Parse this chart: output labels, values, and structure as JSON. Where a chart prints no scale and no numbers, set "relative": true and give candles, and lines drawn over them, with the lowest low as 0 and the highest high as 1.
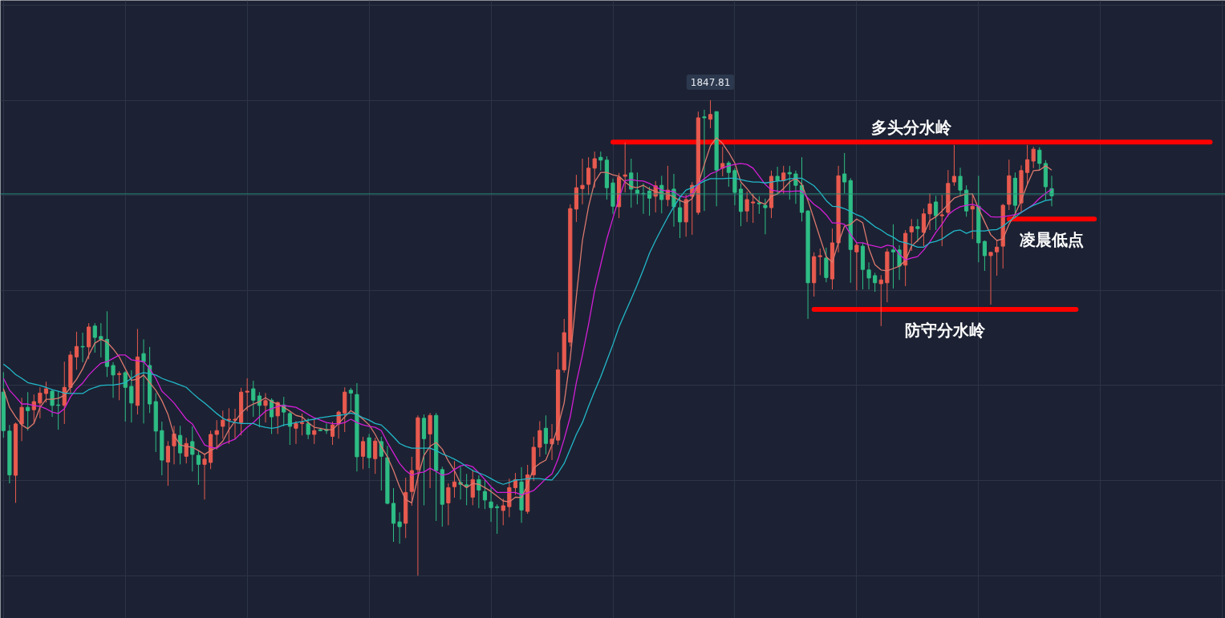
{
  "chart_data": {
    "type": "candlestick",
    "relative": true,
    "grid": true,
    "categories": [
      null,
      null,
      null,
      null,
      null,
      null,
      null,
      null,
      null,
      null,
      null,
      null,
      null,
      null,
      null,
      null,
      null,
      null,
      null,
      null,
      null,
      null,
      null,
      null,
      null,
      null,
      null,
      null,
      null,
      null,
      null,
      null,
      null,
      null,
      null,
      null,
      null,
      null,
      null,
      null,
      null,
      null,
      null,
      null,
      null,
      null,
      null,
      null,
      null,
      null,
      null,
      null,
      null,
      null,
      null,
      null,
      null,
      null,
      null,
      null,
      null,
      null,
      null,
      null,
      null,
      null,
      null,
      null,
      null,
      null,
      null,
      null,
      null,
      null,
      null,
      null,
      null,
      null,
      null,
      null,
      null,
      null,
      null,
      null,
      null,
      null,
      null,
      null,
      null,
      null,
      null,
      null,
      null,
      null,
      null,
      null,
      null,
      null,
      null,
      null,
      null,
      null,
      null,
      null,
      null,
      null,
      null,
      null,
      null,
      null,
      null,
      null,
      null,
      null,
      null,
      null,
      null,
      null,
      null,
      null,
      null,
      null,
      null,
      null,
      null,
      null,
      null,
      null,
      null,
      null,
      null,
      null,
      null,
      null,
      null,
      null,
      null,
      null,
      null,
      null,
      null,
      null,
      null,
      null,
      null,
      null,
      null,
      null,
      null,
      null,
      null,
      null,
      null,
      null,
      null,
      null,
      null,
      null,
      null,
      null,
      null,
      null,
      null,
      null,
      null,
      null,
      null,
      null,
      null,
      null,
      null,
      null,
      null,
      null,
      null,
      null,
      null,
      null,
      null,
      null,
      null,
      null,
      null,
      null,
      null,
      null,
      null,
      null,
      null,
      null,
      null,
      null,
      null,
      null,
      null,
      null,
      null,
      null,
      null,
      null,
      null
    ],
    "ohlc": [
      [
        0.386,
        0.428,
        0.29,
        0.305
      ],
      [
        0.304,
        0.317,
        0.194,
        0.212
      ],
      [
        0.211,
        0.322,
        0.153,
        0.319
      ],
      [
        0.319,
        0.374,
        0.283,
        0.354
      ],
      [
        0.354,
        0.386,
        0.305,
        0.347
      ],
      [
        0.349,
        0.381,
        0.32,
        0.366
      ],
      [
        0.363,
        0.396,
        0.331,
        0.384
      ],
      [
        0.383,
        0.408,
        0.364,
        0.393
      ],
      [
        0.388,
        0.391,
        0.334,
        0.358
      ],
      [
        0.359,
        0.388,
        0.307,
        0.358
      ],
      [
        0.358,
        0.45,
        0.319,
        0.396
      ],
      [
        0.396,
        0.472,
        0.384,
        0.464
      ],
      [
        0.46,
        0.513,
        0.433,
        0.482
      ],
      [
        0.482,
        0.511,
        0.449,
        0.481
      ],
      [
        0.481,
        0.531,
        0.455,
        0.523
      ],
      [
        0.525,
        0.531,
        0.469,
        0.501
      ],
      [
        0.503,
        0.531,
        0.459,
        0.497
      ],
      [
        0.497,
        0.556,
        0.418,
        0.44
      ],
      [
        0.442,
        0.449,
        0.374,
        0.422
      ],
      [
        0.423,
        0.43,
        0.369,
        0.425
      ],
      [
        0.427,
        0.43,
        0.324,
        0.396
      ],
      [
        0.398,
        0.432,
        0.322,
        0.363
      ],
      [
        0.358,
        0.519,
        0.339,
        0.46
      ],
      [
        0.467,
        0.497,
        0.32,
        0.45
      ],
      [
        0.442,
        0.481,
        0.342,
        0.361
      ],
      [
        0.366,
        0.384,
        0.26,
        0.304
      ],
      [
        0.305,
        0.324,
        0.211,
        0.243
      ],
      [
        0.239,
        0.283,
        0.189,
        0.272
      ],
      [
        0.273,
        0.315,
        0.234,
        0.298
      ],
      [
        0.295,
        0.315,
        0.234,
        0.258
      ],
      [
        0.251,
        0.29,
        0.236,
        0.278
      ],
      [
        0.282,
        0.314,
        0.219,
        0.255
      ],
      [
        0.253,
        0.263,
        0.191,
        0.234
      ],
      [
        0.234,
        0.256,
        0.16,
        0.245
      ],
      [
        0.238,
        0.305,
        0.224,
        0.297
      ],
      [
        0.297,
        0.327,
        0.265,
        0.305
      ],
      [
        0.314,
        0.347,
        0.288,
        0.327
      ],
      [
        0.327,
        0.352,
        0.277,
        0.329
      ],
      [
        0.327,
        0.351,
        0.288,
        0.329
      ],
      [
        0.322,
        0.395,
        0.295,
        0.386
      ],
      [
        0.386,
        0.415,
        0.346,
        0.388
      ],
      [
        0.393,
        0.41,
        0.334,
        0.369
      ],
      [
        0.378,
        0.386,
        0.312,
        0.358
      ],
      [
        0.358,
        0.384,
        0.322,
        0.368
      ],
      [
        0.369,
        0.373,
        0.298,
        0.334
      ],
      [
        0.336,
        0.366,
        0.298,
        0.364
      ],
      [
        0.359,
        0.376,
        0.314,
        0.344
      ],
      [
        0.341,
        0.346,
        0.275,
        0.314
      ],
      [
        0.31,
        0.325,
        0.277,
        0.32
      ],
      [
        0.32,
        0.341,
        0.295,
        0.322
      ],
      [
        0.32,
        0.331,
        0.287,
        0.297
      ],
      [
        0.297,
        0.329,
        0.277,
        0.305
      ],
      [
        0.307,
        0.309,
        0.304,
        0.305
      ],
      [
        0.307,
        0.32,
        0.298,
        0.305
      ],
      [
        0.293,
        0.324,
        0.275,
        0.317
      ],
      [
        0.319,
        0.347,
        0.288,
        0.344
      ],
      [
        0.342,
        0.396,
        0.302,
        0.386
      ],
      [
        0.39,
        0.395,
        0.347,
        0.384
      ],
      [
        0.381,
        0.405,
        0.219,
        0.25
      ],
      [
        0.251,
        0.292,
        0.224,
        0.282
      ],
      [
        0.29,
        0.298,
        0.226,
        0.248
      ],
      [
        0.246,
        0.29,
        0.214,
        0.283
      ],
      [
        0.282,
        0.292,
        0.179,
        0.251
      ],
      [
        0.248,
        0.273,
        0.15,
        0.152
      ],
      [
        0.152,
        0.184,
        0.071,
        0.11
      ],
      [
        0.113,
        0.133,
        0.067,
        0.103
      ],
      [
        0.11,
        0.206,
        0.079,
        0.175
      ],
      [
        0.177,
        0.25,
        0.147,
        0.221
      ],
      [
        0.223,
        0.337,
        0,
        0.332
      ],
      [
        0.331,
        0.339,
        0.148,
        0.288
      ],
      [
        0.298,
        0.342,
        0.184,
        0.337
      ],
      [
        0.337,
        0.342,
        0.115,
        0.221
      ],
      [
        0.223,
        0.229,
        0.103,
        0.15
      ],
      [
        0.153,
        0.194,
        0.106,
        0.185
      ],
      [
        0.187,
        0.241,
        0.164,
        0.197
      ],
      [
        0.196,
        0.229,
        0.16,
        0.192
      ],
      [
        0.191,
        0.214,
        0.148,
        0.187
      ],
      [
        0.165,
        0.223,
        0.148,
        0.202
      ],
      [
        0.202,
        0.211,
        0.142,
        0.18
      ],
      [
        0.177,
        0.201,
        0.14,
        0.159
      ],
      [
        0.155,
        0.185,
        0.113,
        0.143
      ],
      [
        0.145,
        0.15,
        0.088,
        0.143
      ],
      [
        0.137,
        0.162,
        0.106,
        0.147
      ],
      [
        0.145,
        0.204,
        0.123,
        0.185
      ],
      [
        0.185,
        0.216,
        0.17,
        0.202
      ],
      [
        0.197,
        0.228,
        0.111,
        0.138
      ],
      [
        0.135,
        0.233,
        0.13,
        0.212
      ],
      [
        0.212,
        0.292,
        0.199,
        0.27
      ],
      [
        0.27,
        0.325,
        0.25,
        0.305
      ],
      [
        0.31,
        0.337,
        0.255,
        0.278
      ],
      [
        0.277,
        0.319,
        0.243,
        0.287
      ],
      [
        0.285,
        0.47,
        0.275,
        0.433
      ],
      [
        0.433,
        0.54,
        0.427,
        0.511
      ],
      [
        0.491,
        0.781,
        0.482,
        0.772
      ],
      [
        0.771,
        0.843,
        0.744,
        0.816
      ],
      [
        0.814,
        0.877,
        0.781,
        0.821
      ],
      [
        0.823,
        0.88,
        0.801,
        0.857
      ],
      [
        0.857,
        0.892,
        0.816,
        0.877
      ],
      [
        0.88,
        0.892,
        0.852,
        0.874
      ],
      [
        0.874,
        0.882,
        0.791,
        0.816
      ],
      [
        0.826,
        0.835,
        0.761,
        0.777
      ],
      [
        0.776,
        0.847,
        0.752,
        0.838
      ],
      [
        0.84,
        0.911,
        0.806,
        0.843
      ],
      [
        0.847,
        0.877,
        0.774,
        0.813
      ],
      [
        0.811,
        0.848,
        0.781,
        0.804
      ],
      [
        0.804,
        0.825,
        0.761,
        0.803
      ],
      [
        0.809,
        0.818,
        0.757,
        0.794
      ],
      [
        0.798,
        0.83,
        0.764,
        0.82
      ],
      [
        0.821,
        0.841,
        0.762,
        0.791
      ],
      [
        0.791,
        0.862,
        0.777,
        0.811
      ],
      [
        0.813,
        0.845,
        0.734,
        0.776
      ],
      [
        0.774,
        0.794,
        0.71,
        0.744
      ],
      [
        0.744,
        0.801,
        0.713,
        0.791
      ],
      [
        0.798,
        0.828,
        0.717,
        0.821
      ],
      [
        0.764,
        0.976,
        0.759,
        0.963
      ],
      [
        0.965,
        0.98,
        0.767,
        0.963
      ],
      [
        0.96,
        1,
        0.941,
        0.97
      ],
      [
        0.976,
        0.976,
        0.777,
        0.853
      ],
      [
        0.857,
        0.902,
        0.84,
        0.867
      ],
      [
        0.868,
        0.872,
        0.818,
        0.848
      ],
      [
        0.852,
        0.857,
        0.779,
        0.806
      ],
      [
        0.813,
        0.825,
        0.735,
        0.766
      ],
      [
        0.767,
        0.808,
        0.744,
        0.791
      ],
      [
        0.784,
        0.804,
        0.742,
        0.786
      ],
      [
        0.784,
        0.798,
        0.761,
        0.782
      ],
      [
        0.779,
        0.793,
        0.718,
        0.774
      ],
      [
        0.774,
        0.852,
        0.752,
        0.84
      ],
      [
        0.84,
        0.86,
        0.801,
        0.831
      ],
      [
        0.831,
        0.862,
        0.803,
        0.847
      ],
      [
        0.848,
        0.862,
        0.791,
        0.845
      ],
      [
        0.845,
        0.852,
        0.782,
        0.821
      ],
      [
        0.821,
        0.88,
        0.745,
        0.764
      ],
      [
        0.767,
        0.769,
        0.54,
        0.616
      ],
      [
        0.616,
        0.68,
        0.587,
        0.671
      ],
      [
        0.671,
        0.688,
        0.632,
        0.673
      ],
      [
        0.668,
        0.69,
        0.617,
        0.627
      ],
      [
        0.624,
        0.73,
        0.602,
        0.7
      ],
      [
        0.7,
        0.862,
        0.68,
        0.841
      ],
      [
        0.845,
        0.889,
        0.804,
        0.828
      ],
      [
        0.831,
        0.836,
        0.616,
        0.686
      ],
      [
        0.681,
        0.7,
        0.6,
        0.695
      ],
      [
        0.693,
        0.7,
        0.602,
        0.644
      ],
      [
        0.643,
        0.659,
        0.602,
        0.626
      ],
      [
        0.631,
        0.637,
        0.597,
        0.616
      ],
      [
        0.614,
        0.632,
        0.525,
        0.622
      ],
      [
        0.616,
        0.688,
        0.575,
        0.681
      ],
      [
        0.685,
        0.739,
        0.604,
        0.681
      ],
      [
        0.685,
        0.695,
        0.622,
        0.651
      ],
      [
        0.653,
        0.727,
        0.609,
        0.72
      ],
      [
        0.723,
        0.75,
        0.683,
        0.734
      ],
      [
        0.734,
        0.75,
        0.702,
        0.73
      ],
      [
        0.722,
        0.772,
        0.693,
        0.761
      ],
      [
        0.761,
        0.804,
        0.727,
        0.782
      ],
      [
        0.786,
        0.799,
        0.727,
        0.757
      ],
      [
        0.757,
        0.801,
        0.693,
        0.759
      ],
      [
        0.764,
        0.853,
        0.755,
        0.825
      ],
      [
        0.828,
        0.906,
        0.82,
        0.84
      ],
      [
        0.84,
        0.858,
        0.798,
        0.811
      ],
      [
        0.811,
        0.821,
        0.755,
        0.767
      ],
      [
        0.771,
        0.804,
        0.708,
        0.777
      ],
      [
        0.777,
        0.841,
        0.659,
        0.7
      ],
      [
        0.703,
        0.705,
        0.641,
        0.673
      ],
      [
        0.673,
        0.681,
        0.57,
        0.68
      ],
      [
        0.681,
        0.705,
        0.631,
        0.691
      ],
      [
        0.693,
        0.782,
        0.646,
        0.779
      ],
      [
        0.781,
        0.875,
        0.769,
        0.841
      ],
      [
        0.836,
        0.848,
        0.755,
        0.779
      ],
      [
        0.784,
        0.863,
        0.764,
        0.852
      ],
      [
        0.848,
        0.906,
        0.823,
        0.875
      ],
      [
        0.872,
        0.902,
        0.857,
        0.897
      ],
      [
        0.895,
        0.901,
        0.853,
        0.867
      ],
      [
        0.867,
        0.874,
        0.789,
        0.818
      ],
      [
        0.814,
        0.841,
        0.777,
        0.799
      ],
      null,
      null,
      null,
      null,
      null,
      null,
      null,
      null,
      null,
      null,
      null,
      null,
      null,
      null,
      null,
      null,
      null,
      null,
      null,
      null,
      null,
      null,
      null,
      null,
      null,
      null,
      null,
      null
    ],
    "colors": [
      "#2ebd85",
      "#2ebd85",
      "#e85a4f",
      "#e85a4f",
      "#2ebd85",
      "#e85a4f",
      "#e85a4f",
      "#e85a4f",
      "#2ebd85",
      "#2ebd85",
      "#e85a4f",
      "#e85a4f",
      "#e85a4f",
      "#2ebd85",
      "#e85a4f",
      "#2ebd85",
      "#2ebd85",
      "#2ebd85",
      "#2ebd85",
      "#e85a4f",
      "#2ebd85",
      "#2ebd85",
      "#e85a4f",
      "#2ebd85",
      "#2ebd85",
      "#2ebd85",
      "#2ebd85",
      "#e85a4f",
      "#e85a4f",
      "#2ebd85",
      "#e85a4f",
      "#2ebd85",
      "#2ebd85",
      "#e85a4f",
      "#e85a4f",
      "#e85a4f",
      "#e85a4f",
      "#e85a4f",
      "#e85a4f",
      "#e85a4f",
      "#e85a4f",
      "#2ebd85",
      "#2ebd85",
      "#e85a4f",
      "#2ebd85",
      "#e85a4f",
      "#2ebd85",
      "#2ebd85",
      "#e85a4f",
      "#e85a4f",
      "#2ebd85",
      "#e85a4f",
      "#2ebd85",
      "#2ebd85",
      "#e85a4f",
      "#e85a4f",
      "#e85a4f",
      "#2ebd85",
      "#2ebd85",
      "#e85a4f",
      "#2ebd85",
      "#e85a4f",
      "#2ebd85",
      "#2ebd85",
      "#2ebd85",
      "#2ebd85",
      "#e85a4f",
      "#e85a4f",
      "#e85a4f",
      "#2ebd85",
      "#e85a4f",
      "#2ebd85",
      "#2ebd85",
      "#e85a4f",
      "#e85a4f",
      "#2ebd85",
      "#2ebd85",
      "#e85a4f",
      "#2ebd85",
      "#2ebd85",
      "#2ebd85",
      "#2ebd85",
      "#e85a4f",
      "#e85a4f",
      "#e85a4f",
      "#2ebd85",
      "#e85a4f",
      "#e85a4f",
      "#e85a4f",
      "#2ebd85",
      "#e85a4f",
      "#e85a4f",
      "#e85a4f",
      "#e85a4f",
      "#e85a4f",
      "#e85a4f",
      "#e85a4f",
      "#e85a4f",
      "#2ebd85",
      "#2ebd85",
      "#2ebd85",
      "#e85a4f",
      "#e85a4f",
      "#2ebd85",
      "#2ebd85",
      "#2ebd85",
      "#2ebd85",
      "#e85a4f",
      "#2ebd85",
      "#e85a4f",
      "#2ebd85",
      "#2ebd85",
      "#e85a4f",
      "#e85a4f",
      "#e85a4f",
      "#2ebd85",
      "#e85a4f",
      "#2ebd85",
      "#e85a4f",
      "#2ebd85",
      "#2ebd85",
      "#2ebd85",
      "#e85a4f",
      "#e85a4f",
      "#2ebd85",
      "#2ebd85",
      "#e85a4f",
      "#2ebd85",
      "#e85a4f",
      "#2ebd85",
      "#2ebd85",
      "#2ebd85",
      "#2ebd85",
      "#e85a4f",
      "#e85a4f",
      "#2ebd85",
      "#e85a4f",
      "#e85a4f",
      "#2ebd85",
      "#2ebd85",
      "#e85a4f",
      "#2ebd85",
      "#2ebd85",
      "#2ebd85",
      "#e85a4f",
      "#e85a4f",
      "#2ebd85",
      "#2ebd85",
      "#e85a4f",
      "#e85a4f",
      "#2ebd85",
      "#e85a4f",
      "#e85a4f",
      "#2ebd85",
      "#e85a4f",
      "#e85a4f",
      "#e85a4f",
      "#2ebd85",
      "#2ebd85",
      "#e85a4f",
      "#2ebd85",
      "#2ebd85",
      "#e85a4f",
      "#e85a4f",
      "#e85a4f",
      "#e85a4f",
      "#2ebd85",
      "#e85a4f",
      "#e85a4f",
      "#e85a4f",
      "#2ebd85",
      "#2ebd85",
      "#2ebd85",
      null,
      null,
      null,
      null,
      null,
      null,
      null,
      null,
      null,
      null,
      null,
      null,
      null,
      null,
      null,
      null,
      null,
      null,
      null,
      null,
      null,
      null,
      null,
      null,
      null,
      null,
      null,
      null
    ],
    "series": [
      {
        "type": "line",
        "color": "#dc786e",
        "values": [
          0.393,
          0.354,
          0.334,
          0.317,
          0.309,
          0.32,
          0.354,
          0.371,
          0.371,
          0.373,
          0.379,
          0.396,
          0.413,
          0.435,
          0.464,
          0.489,
          0.497,
          0.491,
          0.477,
          0.46,
          0.435,
          0.411,
          0.413,
          0.422,
          0.406,
          0.39,
          0.368,
          0.339,
          0.295,
          0.275,
          0.272,
          0.27,
          0.263,
          0.255,
          0.263,
          0.27,
          0.283,
          0.307,
          0.325,
          0.342,
          0.354,
          0.361,
          0.366,
          0.374,
          0.366,
          0.361,
          0.354,
          0.346,
          0.337,
          0.334,
          0.322,
          0.312,
          0.31,
          0.307,
          0.307,
          0.32,
          0.334,
          0.347,
          0.339,
          0.329,
          0.317,
          0.297,
          0.272,
          0.25,
          0.221,
          0.187,
          0.16,
          0.153,
          0.207,
          0.253,
          0.272,
          0.28,
          0.266,
          0.241,
          0.221,
          0.194,
          0.185,
          0.194,
          0.192,
          0.185,
          0.177,
          0.167,
          0.157,
          0.155,
          0.165,
          0.164,
          0.191,
          0.226,
          0.236,
          0.243,
          0.275,
          0.314,
          0.363,
          0.457,
          0.587,
          0.705,
          0.776,
          0.828,
          0.848,
          0.848,
          0.843,
          0.84,
          0.828,
          0.818,
          0.816,
          0.821,
          0.813,
          0.808,
          0.804,
          0.803,
          0.796,
          0.789,
          0.784,
          0.793,
          0.823,
          0.865,
          0.904,
          0.921,
          0.909,
          0.89,
          0.868,
          0.828,
          0.814,
          0.798,
          0.786,
          0.781,
          0.798,
          0.803,
          0.814,
          0.828,
          0.836,
          0.823,
          0.789,
          0.75,
          0.71,
          0.671,
          0.659,
          0.7,
          0.735,
          0.739,
          0.75,
          0.742,
          0.688,
          0.654,
          0.643,
          0.641,
          0.646,
          0.651,
          0.663,
          0.693,
          0.705,
          0.718,
          0.747,
          0.755,
          0.767,
          0.781,
          0.794,
          0.799,
          0.803,
          0.803,
          0.772,
          0.744,
          0.717,
          0.705,
          0.708,
          0.739,
          0.761,
          0.789,
          0.823,
          0.852,
          0.853,
          0.862,
          0.853,
          null,
          null,
          null,
          null,
          null,
          null,
          null,
          null,
          null,
          null,
          null,
          null,
          null,
          null,
          null,
          null,
          null,
          null,
          null,
          null,
          null,
          null,
          null,
          null,
          null,
          null,
          null,
          null
        ]
      },
      {
        "type": "line",
        "color": "#d21fd6",
        "values": [
          0.415,
          0.39,
          0.376,
          0.361,
          0.361,
          0.358,
          0.356,
          0.351,
          0.344,
          0.341,
          0.351,
          0.376,
          0.393,
          0.405,
          0.422,
          0.435,
          0.447,
          0.45,
          0.457,
          0.464,
          0.464,
          0.454,
          0.452,
          0.45,
          0.435,
          0.415,
          0.388,
          0.376,
          0.363,
          0.346,
          0.329,
          0.319,
          0.297,
          0.275,
          0.27,
          0.268,
          0.277,
          0.282,
          0.287,
          0.3,
          0.312,
          0.322,
          0.334,
          0.346,
          0.351,
          0.356,
          0.358,
          0.356,
          0.354,
          0.347,
          0.339,
          0.332,
          0.327,
          0.322,
          0.32,
          0.319,
          0.322,
          0.329,
          0.322,
          0.317,
          0.314,
          0.312,
          0.305,
          0.28,
          0.258,
          0.236,
          0.221,
          0.211,
          0.216,
          0.218,
          0.226,
          0.219,
          0.211,
          0.214,
          0.223,
          0.231,
          0.233,
          0.229,
          0.216,
          0.202,
          0.187,
          0.175,
          0.175,
          0.175,
          0.175,
          0.17,
          0.174,
          0.179,
          0.191,
          0.204,
          0.214,
          0.245,
          0.287,
          0.334,
          0.406,
          0.464,
          0.528,
          0.6,
          0.654,
          0.708,
          0.752,
          0.794,
          0.831,
          0.833,
          0.831,
          0.83,
          0.825,
          0.818,
          0.811,
          0.809,
          0.808,
          0.798,
          0.796,
          0.803,
          0.825,
          0.835,
          0.845,
          0.85,
          0.858,
          0.862,
          0.865,
          0.867,
          0.865,
          0.857,
          0.84,
          0.823,
          0.811,
          0.809,
          0.808,
          0.808,
          0.809,
          0.809,
          0.794,
          0.781,
          0.772,
          0.759,
          0.742,
          0.742,
          0.739,
          0.718,
          0.7,
          0.7,
          0.696,
          0.693,
          0.69,
          0.695,
          0.693,
          0.676,
          0.664,
          0.668,
          0.671,
          0.685,
          0.702,
          0.722,
          0.739,
          0.759,
          0.769,
          0.776,
          0.779,
          0.781,
          0.777,
          0.766,
          0.755,
          0.754,
          0.755,
          0.757,
          0.759,
          0.764,
          0.772,
          0.781,
          0.794,
          0.804,
          0.813,
          null,
          null,
          null,
          null,
          null,
          null,
          null,
          null,
          null,
          null,
          null,
          null,
          null,
          null,
          null,
          null,
          null,
          null,
          null,
          null,
          null,
          null,
          null,
          null,
          null,
          null,
          null,
          null
        ]
      },
      {
        "type": "line",
        "color": "#22b8c9",
        "values": [
          0.445,
          0.435,
          0.423,
          0.415,
          0.406,
          0.403,
          0.4,
          0.396,
          0.391,
          0.388,
          0.384,
          0.383,
          0.383,
          0.383,
          0.391,
          0.396,
          0.4,
          0.401,
          0.401,
          0.403,
          0.406,
          0.415,
          0.423,
          0.427,
          0.425,
          0.422,
          0.415,
          0.41,
          0.406,
          0.401,
          0.396,
          0.384,
          0.373,
          0.363,
          0.352,
          0.341,
          0.331,
          0.325,
          0.322,
          0.32,
          0.32,
          0.32,
          0.315,
          0.312,
          0.31,
          0.312,
          0.317,
          0.319,
          0.322,
          0.324,
          0.327,
          0.329,
          0.332,
          0.334,
          0.336,
          0.337,
          0.339,
          0.342,
          0.339,
          0.332,
          0.327,
          0.32,
          0.317,
          0.305,
          0.292,
          0.278,
          0.272,
          0.268,
          0.268,
          0.268,
          0.268,
          0.263,
          0.256,
          0.251,
          0.245,
          0.238,
          0.229,
          0.221,
          0.216,
          0.211,
          0.204,
          0.197,
          0.192,
          0.196,
          0.201,
          0.202,
          0.204,
          0.204,
          0.204,
          0.202,
          0.201,
          0.216,
          0.236,
          0.266,
          0.297,
          0.322,
          0.356,
          0.388,
          0.418,
          0.452,
          0.486,
          0.523,
          0.553,
          0.582,
          0.612,
          0.644,
          0.678,
          0.705,
          0.73,
          0.754,
          0.776,
          0.796,
          0.811,
          0.816,
          0.823,
          0.83,
          0.835,
          0.835,
          0.835,
          0.836,
          0.836,
          0.833,
          0.83,
          0.828,
          0.828,
          0.826,
          0.828,
          0.83,
          0.831,
          0.835,
          0.836,
          0.836,
          0.828,
          0.82,
          0.806,
          0.789,
          0.777,
          0.776,
          0.772,
          0.766,
          0.759,
          0.754,
          0.744,
          0.734,
          0.727,
          0.718,
          0.712,
          0.703,
          0.7,
          0.696,
          0.691,
          0.691,
          0.7,
          0.703,
          0.708,
          0.717,
          0.725,
          0.727,
          0.72,
          0.725,
          0.725,
          0.725,
          0.727,
          0.728,
          0.735,
          0.745,
          0.754,
          0.764,
          0.772,
          0.779,
          0.784,
          0.789,
          0.791,
          null,
          null,
          null,
          null,
          null,
          null,
          null,
          null,
          null,
          null,
          null,
          null,
          null,
          null,
          null,
          null,
          null,
          null,
          null,
          null,
          null,
          null,
          null,
          null,
          null,
          null,
          null,
          null
        ]
      },
      {
        "type": "line",
        "name": "多头分水岭",
        "color": "#ff0000",
        "values": [
          null,
          null,
          null,
          null,
          null,
          null,
          null,
          null,
          null,
          null,
          null,
          null,
          null,
          null,
          null,
          null,
          null,
          null,
          null,
          null,
          null,
          null,
          null,
          null,
          null,
          null,
          null,
          null,
          null,
          null,
          null,
          null,
          null,
          null,
          null,
          null,
          null,
          null,
          null,
          null,
          null,
          null,
          null,
          null,
          null,
          null,
          null,
          null,
          null,
          null,
          null,
          null,
          null,
          null,
          null,
          null,
          null,
          null,
          null,
          null,
          null,
          null,
          null,
          null,
          null,
          null,
          null,
          null,
          null,
          null,
          null,
          null,
          null,
          null,
          null,
          null,
          null,
          null,
          null,
          null,
          null,
          null,
          null,
          null,
          null,
          null,
          null,
          null,
          null,
          null,
          null,
          null,
          null,
          null,
          null,
          null,
          null,
          null,
          null,
          null,
          0.912,
          0.912,
          0.912,
          0.912,
          0.912,
          0.912,
          0.912,
          0.912,
          0.912,
          0.912,
          0.912,
          0.912,
          0.912,
          0.912,
          0.912,
          0.912,
          0.912,
          0.912,
          0.912,
          0.912,
          0.912,
          0.912,
          0.912,
          0.912,
          0.912,
          0.912,
          0.912,
          0.912,
          0.912,
          0.912,
          0.912,
          0.912,
          0.912,
          0.912,
          0.912,
          0.912,
          0.912,
          0.912,
          0.912,
          0.912,
          0.912,
          0.912,
          0.912,
          0.912,
          0.912,
          0.912,
          0.912,
          0.912,
          0.912,
          0.912,
          0.912,
          0.912,
          0.912,
          0.912,
          0.912,
          0.912,
          0.912,
          0.912,
          0.912,
          0.912,
          0.912,
          0.912,
          0.912,
          0.912,
          0.912,
          0.912,
          0.912,
          0.912,
          0.912,
          0.912,
          0.912,
          0.912,
          0.912,
          0.912,
          0.912,
          0.912,
          0.912,
          0.912,
          0.912,
          0.912,
          0.912,
          0.912,
          0.912,
          0.912,
          0.912,
          0.912,
          0.912,
          0.912,
          0.912,
          0.912,
          0.912,
          0.912,
          0.912,
          0.912,
          0.912,
          0.912,
          0.912,
          0.912,
          0.912,
          null,
          null
        ]
      },
      {
        "type": "line",
        "name": "防守分水岭",
        "color": "#ff0000",
        "values": [
          null,
          null,
          null,
          null,
          null,
          null,
          null,
          null,
          null,
          null,
          null,
          null,
          null,
          null,
          null,
          null,
          null,
          null,
          null,
          null,
          null,
          null,
          null,
          null,
          null,
          null,
          null,
          null,
          null,
          null,
          null,
          null,
          null,
          null,
          null,
          null,
          null,
          null,
          null,
          null,
          null,
          null,
          null,
          null,
          null,
          null,
          null,
          null,
          null,
          null,
          null,
          null,
          null,
          null,
          null,
          null,
          null,
          null,
          null,
          null,
          null,
          null,
          null,
          null,
          null,
          null,
          null,
          null,
          null,
          null,
          null,
          null,
          null,
          null,
          null,
          null,
          null,
          null,
          null,
          null,
          null,
          null,
          null,
          null,
          null,
          null,
          null,
          null,
          null,
          null,
          null,
          null,
          null,
          null,
          null,
          null,
          null,
          null,
          null,
          null,
          null,
          null,
          null,
          null,
          null,
          null,
          null,
          null,
          null,
          null,
          null,
          null,
          null,
          null,
          null,
          null,
          null,
          null,
          null,
          null,
          null,
          null,
          null,
          null,
          null,
          null,
          null,
          null,
          null,
          null,
          null,
          null,
          null,
          0.56,
          0.56,
          0.56,
          0.56,
          0.56,
          0.56,
          0.56,
          0.56,
          0.56,
          0.56,
          0.56,
          0.56,
          0.56,
          0.56,
          0.56,
          0.56,
          0.56,
          0.56,
          0.56,
          0.56,
          0.56,
          0.56,
          0.56,
          0.56,
          0.56,
          0.56,
          0.56,
          0.56,
          0.56,
          0.56,
          0.56,
          0.56,
          0.56,
          0.56,
          0.56,
          0.56,
          0.56,
          0.56,
          0.56,
          0.56,
          0.56,
          0.56,
          0.56,
          0.56,
          null,
          null,
          null,
          null,
          null,
          null,
          null,
          null,
          null,
          null,
          null,
          null,
          null,
          null,
          null,
          null,
          null,
          null,
          null,
          null,
          null,
          null,
          null,
          null
        ]
      },
      {
        "type": "line",
        "name": "凌晨低点",
        "color": "#ff0000",
        "values": [
          null,
          null,
          null,
          null,
          null,
          null,
          null,
          null,
          null,
          null,
          null,
          null,
          null,
          null,
          null,
          null,
          null,
          null,
          null,
          null,
          null,
          null,
          null,
          null,
          null,
          null,
          null,
          null,
          null,
          null,
          null,
          null,
          null,
          null,
          null,
          null,
          null,
          null,
          null,
          null,
          null,
          null,
          null,
          null,
          null,
          null,
          null,
          null,
          null,
          null,
          null,
          null,
          null,
          null,
          null,
          null,
          null,
          null,
          null,
          null,
          null,
          null,
          null,
          null,
          null,
          null,
          null,
          null,
          null,
          null,
          null,
          null,
          null,
          null,
          null,
          null,
          null,
          null,
          null,
          null,
          null,
          null,
          null,
          null,
          null,
          null,
          null,
          null,
          null,
          null,
          null,
          null,
          null,
          null,
          null,
          null,
          null,
          null,
          null,
          null,
          null,
          null,
          null,
          null,
          null,
          null,
          null,
          null,
          null,
          null,
          null,
          null,
          null,
          null,
          null,
          null,
          null,
          null,
          null,
          null,
          null,
          null,
          null,
          null,
          null,
          null,
          null,
          null,
          null,
          null,
          null,
          null,
          null,
          null,
          null,
          null,
          null,
          null,
          null,
          null,
          null,
          null,
          null,
          null,
          null,
          null,
          null,
          null,
          null,
          null,
          null,
          null,
          null,
          null,
          null,
          null,
          null,
          null,
          null,
          null,
          null,
          null,
          null,
          null,
          null,
          0.75,
          0.75,
          0.75,
          0.75,
          0.75,
          0.75,
          0.75,
          0.75,
          0.75,
          0.75,
          0.75,
          0.75,
          0.75,
          0.75,
          0.75,
          null,
          null,
          null,
          null,
          null,
          null,
          null,
          null,
          null,
          null,
          null,
          null,
          null,
          null,
          null,
          null,
          null,
          null,
          null,
          null,
          null
        ]
      }
    ],
    "ref_lines": [
      {
        "axis": "y",
        "value": 0.803,
        "color": "#23957f"
      }
    ],
    "annotations": [
      {
        "text": "1847.81",
        "y": 1
      }
    ]
  }
}
